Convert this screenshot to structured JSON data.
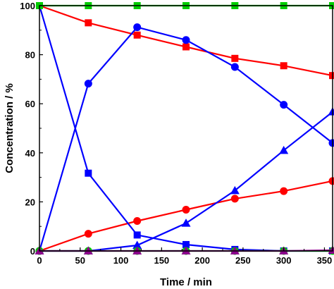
{
  "chart_data": {
    "type": "line",
    "title": "",
    "xlabel": "Time / min",
    "ylabel": "Concentration / %",
    "xlim": [
      0,
      360
    ],
    "ylim": [
      0,
      100
    ],
    "xticks": [
      0,
      50,
      100,
      150,
      200,
      250,
      300,
      350
    ],
    "yticks": [
      0,
      20,
      40,
      60,
      80,
      100
    ],
    "grid": false,
    "legend": "none",
    "series": [
      {
        "color": "#ff0000",
        "marker": "square",
        "x": [
          0,
          60,
          120,
          180,
          240,
          300,
          360
        ],
        "y": [
          100,
          93,
          88,
          83.2,
          78.5,
          75.5,
          71.5
        ]
      },
      {
        "color": "#ff0000",
        "marker": "circle",
        "x": [
          0,
          60,
          120,
          180,
          240,
          300,
          360
        ],
        "y": [
          0,
          7,
          12.2,
          16.8,
          21.3,
          24.4,
          28.5
        ]
      },
      {
        "color": "#0000ff",
        "marker": "square",
        "x": [
          0,
          60,
          120,
          180,
          240,
          300,
          360
        ],
        "y": [
          100,
          31.7,
          6.5,
          2.6,
          0.6,
          0,
          0
        ]
      },
      {
        "color": "#0000ff",
        "marker": "circle",
        "x": [
          0,
          60,
          120,
          180,
          240,
          300,
          360
        ],
        "y": [
          0,
          68.2,
          91.2,
          86,
          75,
          59.6,
          44
        ]
      },
      {
        "color": "#0000ff",
        "marker": "triangle",
        "x": [
          0,
          60,
          120,
          180,
          240,
          300,
          360
        ],
        "y": [
          0,
          0,
          2.3,
          11.3,
          24.6,
          41,
          56.7
        ]
      },
      {
        "color": "#00cc00",
        "marker": "square",
        "x": [
          0,
          60,
          120,
          180,
          240,
          300,
          360
        ],
        "y": [
          100,
          100,
          100,
          100,
          100,
          100,
          100
        ]
      },
      {
        "color": "#00cc00",
        "marker": "circle",
        "x": [
          0,
          60,
          120,
          180,
          240,
          300,
          360
        ],
        "y": [
          0,
          0,
          0,
          0,
          0,
          0,
          0
        ]
      },
      {
        "color": "#8b008b",
        "marker": "triangle",
        "x": [
          0,
          60,
          120,
          180,
          240,
          300,
          360
        ],
        "y": [
          0,
          0,
          0,
          0,
          0,
          0,
          0.3
        ]
      }
    ]
  }
}
